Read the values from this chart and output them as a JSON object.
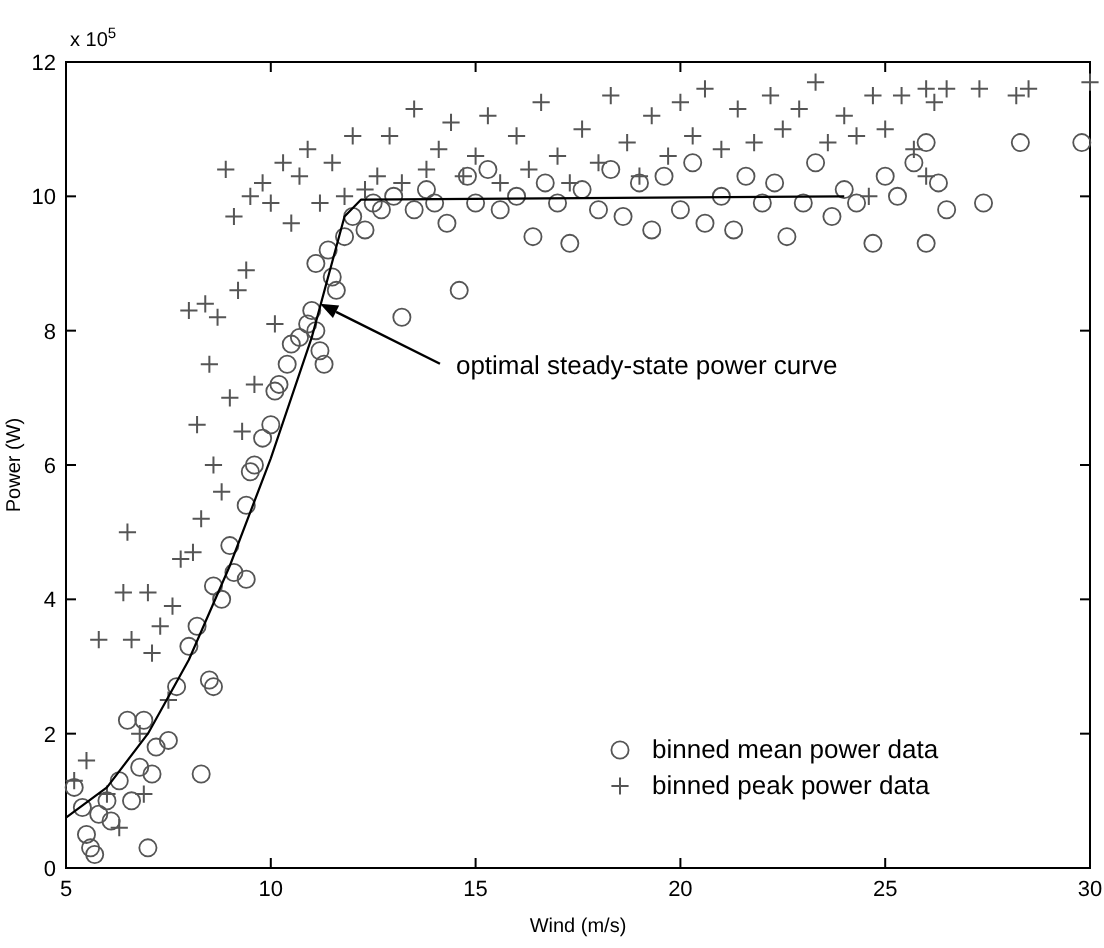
{
  "chart_data": {
    "type": "scatter",
    "xlabel": "Wind (m/s)",
    "ylabel": "Power (W)",
    "xlim": [
      5,
      30
    ],
    "xticks": [
      5,
      10,
      15,
      20,
      25,
      30
    ],
    "ylim": [
      0,
      12
    ],
    "yticks": [
      0,
      2,
      4,
      6,
      8,
      10,
      12
    ],
    "grid": false,
    "legend": "bottom right",
    "annotations": [
      "x 10$^{5}$",
      {
        "text": "optimal steady-state power curve",
        "x": 11.2,
        "y": 8.4
      }
    ],
    "series": [
      {
        "name": "binned mean power data",
        "marker": "circle",
        "color": "#555555",
        "x": [
          5.2,
          5.4,
          5.5,
          5.6,
          5.7,
          5.8,
          6,
          6.1,
          6.3,
          6.5,
          6.6,
          6.8,
          6.9,
          7.1,
          7.2,
          7,
          7.5,
          7.7,
          8,
          8.2,
          8.3,
          8.5,
          8.6,
          8.6,
          8.8,
          9,
          9.1,
          9.4,
          9.4,
          9.5,
          9.6,
          9.8,
          10,
          10.1,
          10.2,
          10.4,
          10.5,
          10.7,
          10.9,
          11,
          11.1,
          11.2,
          11.3,
          11.1,
          11.4,
          11.5,
          11.6,
          11.8,
          12,
          12.3,
          12.5,
          12.7,
          13,
          13.2,
          13.5,
          13.8,
          14,
          14.3,
          14.6,
          14.8,
          15,
          15.3,
          15.6,
          16,
          16.4,
          16.7,
          17,
          17.3,
          17.6,
          18,
          18.3,
          18.6,
          19,
          19.3,
          19.6,
          20,
          20.3,
          20.6,
          21,
          21.3,
          21.6,
          22,
          22.3,
          22.6,
          23,
          23.3,
          23.7,
          24,
          24.3,
          24.7,
          25,
          25.3,
          25.7,
          26,
          26,
          26.3,
          26.5,
          27.4,
          28.3,
          29.8
        ],
        "values": [
          1.2,
          0.9,
          0.5,
          0.3,
          0.2,
          0.8,
          1,
          0.7,
          1.3,
          2.2,
          1,
          1.5,
          2.2,
          1.4,
          1.8,
          0.3,
          1.9,
          2.7,
          3.3,
          3.6,
          1.4,
          2.8,
          2.7,
          4.2,
          4,
          4.8,
          4.4,
          4.3,
          5.4,
          5.9,
          6,
          6.4,
          6.6,
          7.1,
          7.2,
          7.5,
          7.8,
          7.9,
          8.1,
          8.3,
          8,
          7.7,
          7.5,
          9,
          9.2,
          8.8,
          8.6,
          9.4,
          9.7,
          9.5,
          9.9,
          9.8,
          10,
          8.2,
          9.8,
          10.1,
          9.9,
          9.6,
          8.6,
          10.3,
          9.9,
          10.4,
          9.8,
          10,
          9.4,
          10.2,
          9.9,
          9.3,
          10.1,
          9.8,
          10.4,
          9.7,
          10.2,
          9.5,
          10.3,
          9.8,
          10.5,
          9.6,
          10,
          9.5,
          10.3,
          9.9,
          10.2,
          9.4,
          9.9,
          10.5,
          9.7,
          10.1,
          9.9,
          9.3,
          10.3,
          10,
          10.5,
          9.3,
          10.8,
          10.2,
          9.8,
          9.9,
          10.8,
          10.8
        ]
      },
      {
        "name": "binned peak power data",
        "marker": "cross",
        "color": "#555555",
        "x": [
          5.2,
          5.5,
          5.8,
          6,
          6.3,
          6.4,
          6.5,
          6.6,
          6.8,
          6.9,
          7,
          7.1,
          7.3,
          7.5,
          7.6,
          7.8,
          8,
          8.1,
          8.2,
          8.3,
          8.4,
          8.5,
          8.6,
          8.7,
          8.8,
          8.9,
          9,
          9.1,
          9.2,
          9.3,
          9.4,
          9.5,
          9.6,
          9.8,
          10,
          10.1,
          10.3,
          10.5,
          10.7,
          10.9,
          11.2,
          11.5,
          11.8,
          12,
          12.3,
          12.6,
          12.9,
          13.2,
          13.5,
          13.8,
          14.1,
          14.4,
          14.7,
          15,
          15.3,
          15.6,
          16,
          16.3,
          16.6,
          17,
          17.3,
          17.6,
          18,
          18.3,
          18.7,
          19,
          19.3,
          19.7,
          20,
          20.3,
          20.6,
          21,
          21.4,
          21.8,
          22.2,
          22.5,
          22.9,
          23.3,
          23.6,
          24,
          24.3,
          24.6,
          24.7,
          25,
          25.4,
          25.7,
          26,
          26,
          26.2,
          26.5,
          27.3,
          28.2,
          28.5,
          30
        ],
        "values": [
          1.3,
          1.6,
          3.4,
          1.1,
          0.6,
          4.1,
          5,
          3.4,
          2,
          1.1,
          4.1,
          3.2,
          3.6,
          2.5,
          3.9,
          4.6,
          8.3,
          4.7,
          6.6,
          5.2,
          8.4,
          7.5,
          6,
          8.2,
          5.6,
          10.4,
          7,
          9.7,
          8.6,
          6.5,
          8.9,
          10,
          7.2,
          10.2,
          9.9,
          8.1,
          10.5,
          9.6,
          10.3,
          10.7,
          9.9,
          10.5,
          10,
          10.9,
          10.1,
          10.3,
          10.9,
          10.2,
          11.3,
          10.4,
          10.7,
          11.1,
          10.3,
          10.6,
          11.2,
          10.2,
          10.9,
          10.4,
          11.4,
          10.6,
          10.2,
          11,
          10.5,
          11.5,
          10.8,
          10.3,
          11.2,
          10.6,
          11.4,
          10.9,
          11.6,
          10.7,
          11.3,
          10.8,
          11.5,
          11,
          11.3,
          11.7,
          10.8,
          11.2,
          10.9,
          10,
          11.5,
          11,
          11.5,
          10.7,
          11.6,
          10.3,
          11.4,
          11.6,
          11.6,
          11.5,
          11.6,
          11.7
        ]
      },
      {
        "type": "line",
        "marker": "none",
        "line_style": "solid",
        "color": "#000000",
        "x": [
          5,
          6,
          7,
          8,
          9,
          10,
          11,
          11.8,
          12.2,
          24
        ],
        "values": [
          0.75,
          1.2,
          2,
          3.1,
          4.5,
          6.1,
          7.9,
          9.7,
          9.95,
          10
        ]
      }
    ]
  }
}
